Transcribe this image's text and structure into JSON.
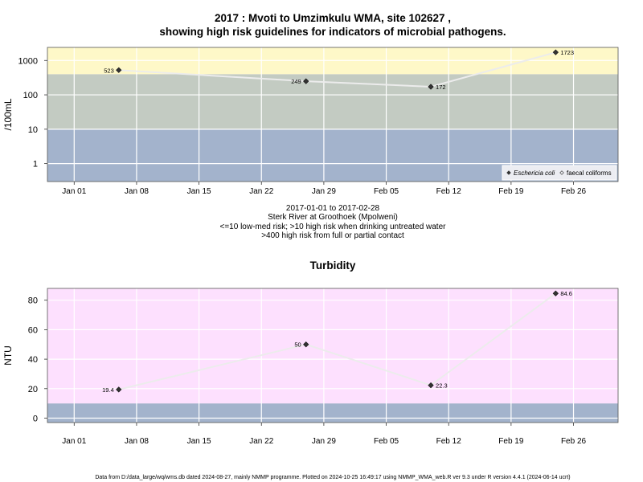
{
  "title_line1": "2017 : Mvoti to Umzimkulu WMA, site 102627 ,",
  "title_line2": "showing high risk guidelines for indicators of microbial pathogens.",
  "footer": "Data from D:/data_large/wq/wms.db dated 2024-08-27, mainly NMMP programme. Plotted on 2024-10-25 16:49:17 using NMMP_WMA_web.R ver 9.3 under R version 4.4.1 (2024-06-14 ucrt)",
  "chart_data": [
    {
      "type": "line",
      "title": "",
      "ylabel": "/100mL",
      "y_scale": "log",
      "ylim": [
        0.3,
        2400
      ],
      "y_ticks": [
        1,
        10,
        100,
        1000
      ],
      "y_tick_labels": [
        "1",
        "10",
        "100",
        "1000"
      ],
      "x_ticks": [
        "2017-01-01",
        "2017-01-08",
        "2017-01-15",
        "2017-01-22",
        "2017-01-29",
        "2017-02-05",
        "2017-02-12",
        "2017-02-19",
        "2017-02-26"
      ],
      "x_tick_labels": [
        "Jan 01",
        "Jan 08",
        "Jan 15",
        "Jan 22",
        "Jan 29",
        "Feb 05",
        "Feb 12",
        "Feb 19",
        "Feb 26"
      ],
      "xlim": [
        "2016-12-29",
        "2017-03-03"
      ],
      "grid": true,
      "bands": [
        {
          "from": 0.3,
          "to": 10,
          "color": "#a3b3cc"
        },
        {
          "from": 10,
          "to": 400,
          "color": "#c3cbc2"
        },
        {
          "from": 400,
          "to": 2400,
          "color": "#fef8c8"
        }
      ],
      "series": [
        {
          "name": "Eschericia coli",
          "marker": "filled-diamond",
          "color": "#333333",
          "x": [
            "2017-01-06",
            "2017-01-27",
            "2017-02-10",
            "2017-02-24"
          ],
          "values": [
            523,
            249,
            172,
            1723
          ],
          "labels": [
            "523",
            "249",
            "172",
            "1723"
          ]
        }
      ],
      "legend": {
        "position": "bottom-right",
        "entries": [
          {
            "name": "Eschericia coli",
            "marker": "filled-diamond",
            "italic": true
          },
          {
            "name": "faecal coliforms",
            "marker": "open-diamond",
            "italic": false
          }
        ]
      },
      "caption_lines": [
        "2017-01-01 to 2017-02-28",
        "Sterk River at Groothoek (Mpolweni)",
        "<=10 low-med risk; >10 high risk when drinking untreated water",
        ">400 high risk from full or partial contact"
      ]
    },
    {
      "type": "line",
      "title": "Turbidity",
      "ylabel": "NTU",
      "y_scale": "linear",
      "ylim": [
        -3,
        88
      ],
      "y_ticks": [
        0,
        20,
        40,
        60,
        80
      ],
      "y_tick_labels": [
        "0",
        "20",
        "40",
        "60",
        "80"
      ],
      "x_ticks": [
        "2017-01-01",
        "2017-01-08",
        "2017-01-15",
        "2017-01-22",
        "2017-01-29",
        "2017-02-05",
        "2017-02-12",
        "2017-02-19",
        "2017-02-26"
      ],
      "x_tick_labels": [
        "Jan 01",
        "Jan 08",
        "Jan 15",
        "Jan 22",
        "Jan 29",
        "Feb 05",
        "Feb 12",
        "Feb 19",
        "Feb 26"
      ],
      "xlim": [
        "2016-12-29",
        "2017-03-03"
      ],
      "grid": true,
      "bands": [
        {
          "from": -3,
          "to": 10,
          "color": "#a3b3cc"
        },
        {
          "from": 10,
          "to": 88,
          "color": "#fde0fe"
        }
      ],
      "series": [
        {
          "name": "",
          "marker": "filled-diamond",
          "color": "#333333",
          "x": [
            "2017-01-06",
            "2017-01-27",
            "2017-02-10",
            "2017-02-24"
          ],
          "values": [
            19.4,
            50,
            22.3,
            84.6
          ],
          "labels": [
            "19.4",
            "50",
            "22.3",
            "84.6"
          ]
        }
      ]
    }
  ]
}
